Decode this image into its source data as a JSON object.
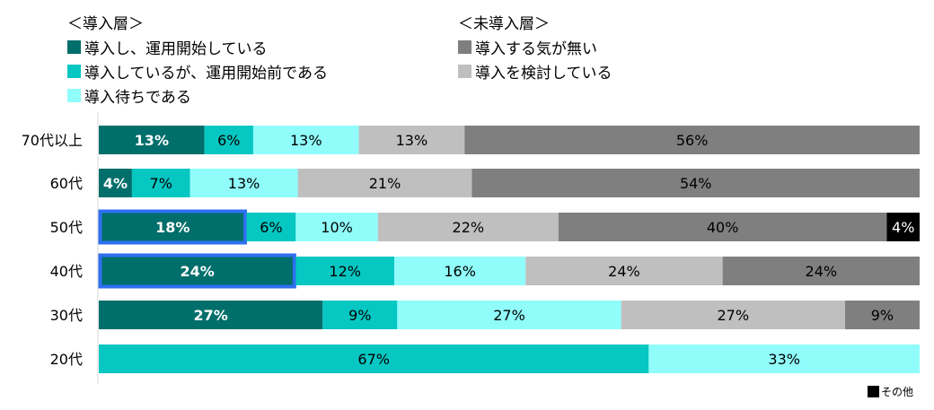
{
  "chart_data": {
    "type": "bar",
    "orientation": "horizontal-stacked-100",
    "legend": {
      "groups": [
        {
          "title": "＜導入層＞",
          "items": [
            {
              "name": "導入し、運用開始している",
              "color": "#006e6a"
            },
            {
              "name": "導入しているが、運用開始前である",
              "color": "#06c7c2"
            },
            {
              "name": "導入待ちである",
              "color": "#90fdfb"
            }
          ]
        },
        {
          "title": "＜未導入層＞",
          "items": [
            {
              "name": "導入する気が無い",
              "color": "#7f7f7f"
            },
            {
              "name": "導入を検討している",
              "color": "#bfbfbf"
            }
          ]
        }
      ],
      "other": {
        "name": "その他",
        "color": "#000000"
      }
    },
    "categories": [
      "70代以上",
      "60代",
      "50代",
      "40代",
      "30代",
      "20代"
    ],
    "series_order": [
      "導入し、運用開始している",
      "導入しているが、運用開始前である",
      "導入待ちである",
      "導入を検討している",
      "導入する気が無い",
      "その他"
    ],
    "colors": [
      "#006e6a",
      "#06c7c2",
      "#90fdfb",
      "#bfbfbf",
      "#7f7f7f",
      "#000000"
    ],
    "label_colors": [
      "#ffffff",
      "#000000",
      "#000000",
      "#000000",
      "#000000",
      "#ffffff"
    ],
    "values": [
      [
        13,
        6,
        13,
        13,
        56,
        0
      ],
      [
        4,
        7,
        13,
        21,
        54,
        0
      ],
      [
        18,
        6,
        10,
        22,
        40,
        4
      ],
      [
        24,
        12,
        16,
        24,
        24,
        0
      ],
      [
        27,
        9,
        27,
        27,
        9,
        0
      ],
      [
        0,
        67,
        33,
        0,
        0,
        0
      ]
    ],
    "highlighted": [
      {
        "category": "50代",
        "series": "導入し、運用開始している"
      },
      {
        "category": "40代",
        "series": "導入し、運用開始している"
      }
    ],
    "highlight_color": "#2f6ff0",
    "unit": "%"
  }
}
